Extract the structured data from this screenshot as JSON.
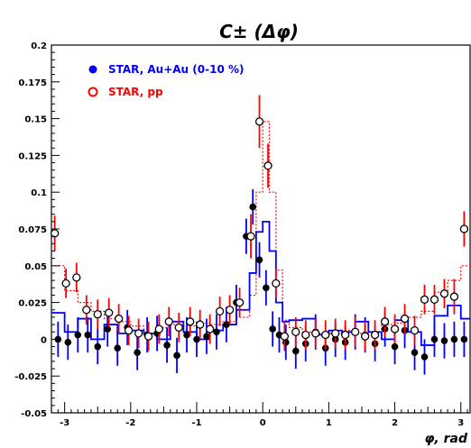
{
  "chart_data": {
    "type": "scatter",
    "title": "C± (Δφ)",
    "xlabel": "φ, rad",
    "ylabel": "",
    "xlim": [
      -3.2,
      3.14
    ],
    "ylim": [
      -0.05,
      0.2
    ],
    "xticks": [
      -3,
      -2,
      -1,
      0,
      1,
      2,
      3
    ],
    "xtick_labels": [
      "-3",
      "-2",
      "-1",
      "0",
      "1",
      "2",
      "3"
    ],
    "yticks": [
      -0.05,
      -0.025,
      0,
      0.025,
      0.05,
      0.075,
      0.1,
      0.125,
      0.15,
      0.175,
      0.2
    ],
    "ytick_labels": [
      "-0.05",
      "-0.025",
      "0",
      "0.025",
      "0.05",
      "0.075",
      "0.1",
      "0.125",
      "0.15",
      "0.175",
      "0.2"
    ],
    "legend_position": "top-left",
    "grid": false,
    "series": [
      {
        "name": "STAR, Au+Au (0-10 %)",
        "marker": "filled-circle",
        "color": "#0000ff",
        "x": [
          -3.1,
          -2.95,
          -2.8,
          -2.65,
          -2.5,
          -2.35,
          -2.2,
          -2.05,
          -1.9,
          -1.75,
          -1.6,
          -1.45,
          -1.3,
          -1.15,
          -1.0,
          -0.85,
          -0.7,
          -0.55,
          -0.4,
          -0.25,
          -0.15,
          -0.05,
          0.05,
          0.15,
          0.25,
          0.35,
          0.5,
          0.65,
          0.8,
          0.95,
          1.1,
          1.25,
          1.4,
          1.55,
          1.7,
          1.85,
          2.0,
          2.15,
          2.3,
          2.45,
          2.6,
          2.75,
          2.9,
          3.05
        ],
        "y": [
          0.0,
          -0.002,
          0.003,
          0.003,
          -0.005,
          0.007,
          -0.006,
          0.008,
          -0.009,
          0.003,
          0.004,
          -0.004,
          -0.011,
          0.003,
          0.0,
          0.002,
          0.005,
          0.01,
          0.025,
          0.07,
          0.09,
          0.054,
          0.035,
          0.007,
          0.003,
          -0.002,
          -0.008,
          -0.003,
          0.005,
          -0.006,
          0.0,
          -0.002,
          0.005,
          0.003,
          -0.003,
          0.007,
          -0.005,
          0.006,
          -0.009,
          -0.012,
          0.0,
          -0.001,
          0.0,
          0.0
        ],
        "yerr": [
          0.012,
          0.012,
          0.012,
          0.012,
          0.012,
          0.012,
          0.012,
          0.012,
          0.012,
          0.012,
          0.012,
          0.012,
          0.012,
          0.012,
          0.012,
          0.012,
          0.012,
          0.012,
          0.012,
          0.012,
          0.012,
          0.012,
          0.012,
          0.012,
          0.012,
          0.012,
          0.012,
          0.012,
          0.012,
          0.012,
          0.012,
          0.012,
          0.012,
          0.012,
          0.012,
          0.012,
          0.012,
          0.012,
          0.012,
          0.012,
          0.012,
          0.012,
          0.012,
          0.012
        ]
      },
      {
        "name": "STAR, pp",
        "marker": "open-circle",
        "color": "#ff0000",
        "x": [
          -3.15,
          -2.98,
          -2.82,
          -2.67,
          -2.5,
          -2.33,
          -2.18,
          -2.03,
          -1.88,
          -1.73,
          -1.57,
          -1.42,
          -1.27,
          -1.1,
          -0.95,
          -0.8,
          -0.65,
          -0.5,
          -0.35,
          -0.18,
          -0.05,
          0.08,
          0.2,
          0.33,
          0.5,
          0.65,
          0.8,
          0.95,
          1.1,
          1.25,
          1.4,
          1.55,
          1.7,
          1.85,
          2.0,
          2.15,
          2.3,
          2.45,
          2.6,
          2.75,
          2.9,
          3.05
        ],
        "y": [
          0.072,
          0.038,
          0.042,
          0.02,
          0.017,
          0.018,
          0.014,
          0.006,
          0.004,
          0.002,
          0.007,
          0.012,
          0.008,
          0.012,
          0.01,
          0.007,
          0.019,
          0.02,
          0.025,
          0.07,
          0.148,
          0.118,
          0.038,
          0.002,
          0.005,
          0.003,
          0.004,
          0.003,
          0.004,
          0.003,
          0.005,
          0.002,
          0.003,
          0.012,
          0.007,
          0.014,
          0.006,
          0.027,
          0.027,
          0.031,
          0.029,
          0.075
        ],
        "yerr": [
          0.012,
          0.01,
          0.01,
          0.01,
          0.01,
          0.01,
          0.01,
          0.01,
          0.01,
          0.01,
          0.01,
          0.01,
          0.01,
          0.01,
          0.01,
          0.01,
          0.01,
          0.01,
          0.01,
          0.015,
          0.018,
          0.015,
          0.01,
          0.01,
          0.01,
          0.01,
          0.01,
          0.01,
          0.01,
          0.01,
          0.01,
          0.01,
          0.01,
          0.01,
          0.01,
          0.01,
          0.01,
          0.01,
          0.01,
          0.01,
          0.012,
          0.012
        ]
      },
      {
        "name": "",
        "style": "blue-solid-histogram",
        "color": "#0000ff",
        "bin_edges": [
          -3.2,
          -3.0,
          -2.8,
          -2.6,
          -2.4,
          -2.2,
          -2.0,
          -1.8,
          -1.6,
          -1.4,
          -1.2,
          -1.0,
          -0.8,
          -0.6,
          -0.4,
          -0.2,
          -0.1,
          0.0,
          0.1,
          0.2,
          0.3,
          0.4,
          0.6,
          0.8,
          1.0,
          1.2,
          1.4,
          1.6,
          1.8,
          2.0,
          2.2,
          2.4,
          2.6,
          2.8,
          3.0,
          3.14
        ],
        "values": [
          0.018,
          0.005,
          0.014,
          0.0,
          0.01,
          0.004,
          0.006,
          0.004,
          0.0,
          0.012,
          0.005,
          0.0,
          0.006,
          0.01,
          0.02,
          0.045,
          0.073,
          0.08,
          0.06,
          0.025,
          0.012,
          0.013,
          0.014,
          0.003,
          0.006,
          0.005,
          0.012,
          0.005,
          0.0,
          0.013,
          0.005,
          -0.004,
          0.016,
          0.023,
          0.014
        ]
      },
      {
        "name": "",
        "style": "red-dotted-histogram",
        "color": "#ff0000",
        "bin_edges": [
          -3.2,
          -3.0,
          -2.8,
          -2.6,
          -2.4,
          -2.2,
          -2.0,
          -1.8,
          -1.6,
          -1.4,
          -1.2,
          -1.0,
          -0.8,
          -0.6,
          -0.4,
          -0.2,
          -0.1,
          0.0,
          0.1,
          0.2,
          0.3,
          0.4,
          0.6,
          0.8,
          1.0,
          1.2,
          1.4,
          1.6,
          1.8,
          2.0,
          2.2,
          2.4,
          2.6,
          2.8,
          3.0,
          3.14
        ],
        "values": [
          0.05,
          0.033,
          0.025,
          0.019,
          0.014,
          0.012,
          0.009,
          0.004,
          0.008,
          0.01,
          0.009,
          0.011,
          0.01,
          0.012,
          0.015,
          0.03,
          0.1,
          0.148,
          0.1,
          0.047,
          0.013,
          0.008,
          0.005,
          0.004,
          0.004,
          0.006,
          0.004,
          0.005,
          0.01,
          0.011,
          0.015,
          0.019,
          0.032,
          0.04,
          0.05
        ]
      }
    ]
  }
}
